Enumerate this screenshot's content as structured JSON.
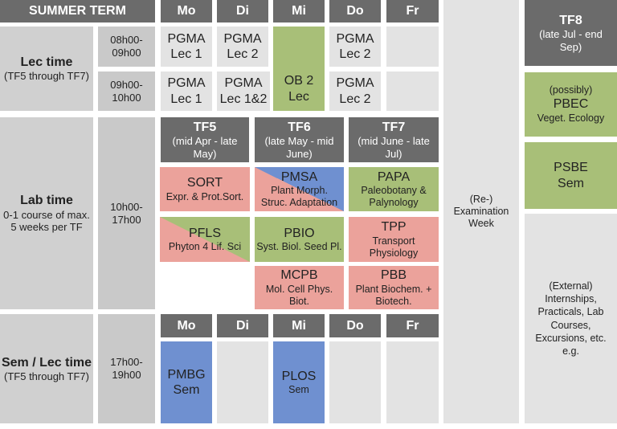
{
  "header": {
    "title": "SUMMER TERM",
    "days": [
      "Mo",
      "Di",
      "Mi",
      "Do",
      "Fr"
    ]
  },
  "lec": {
    "label": "Lec time",
    "sub": "(TF5 through TF7)",
    "times": [
      "08h00-\n09h00",
      "09h00-\n10h00"
    ],
    "row1": [
      {
        "c": "PGMA",
        "d": "Lec 1"
      },
      {
        "c": "PGMA",
        "d": "Lec 2"
      },
      {
        "c": "PGMA",
        "d": "Lec 2"
      }
    ],
    "row2": [
      {
        "c": "PGMA",
        "d": "Lec 1"
      },
      {
        "c": "PGMA",
        "d": "Lec 1&2"
      },
      {
        "c": "PGMA",
        "d": "Lec 2"
      }
    ],
    "ob2": {
      "c": "OB 2",
      "d": "Lec"
    }
  },
  "lab": {
    "label": "Lab time",
    "sub": "0-1 course of max. 5 weeks per TF",
    "time": "10h00-\n17h00",
    "tf": [
      {
        "t": "TF5",
        "s": "(mid Apr - late May)"
      },
      {
        "t": "TF6",
        "s": "(late May - mid June)"
      },
      {
        "t": "TF7",
        "s": "(mid June - late Jul)"
      }
    ],
    "courses": [
      {
        "c": "SORT",
        "d": "Expr. & Prot.Sort."
      },
      {
        "c": "PMSA",
        "d": "Plant Morph. Struc. Adaptation"
      },
      {
        "c": "PAPA",
        "d": "Paleobotany & Palynology"
      },
      {
        "c": "PFLS",
        "d": "Phyton 4 Lif. Sci"
      },
      {
        "c": "PBIO",
        "d": "Syst. Biol. Seed Pl."
      },
      {
        "c": "TPP",
        "d": "Transport Physiology"
      },
      {
        "c": "MCPB",
        "d": "Mol. Cell Phys. Biot."
      },
      {
        "c": "PBB",
        "d": "Plant Biochem. + Biotech."
      }
    ]
  },
  "sem": {
    "label": "Sem / Lec time",
    "sub": "(TF5 through TF7)",
    "time": "17h00-\n19h00",
    "pmbg": {
      "c": "PMBG",
      "d": "Sem"
    },
    "plos": {
      "c": "PLOS",
      "d": "Sem"
    }
  },
  "exam": "(Re-) Examination Week",
  "tf8": {
    "t": "TF8",
    "s": "(late Jul - end Sep)"
  },
  "pbec": {
    "pre": "(possibly)",
    "c": "PBEC",
    "d": "Veget. Ecology"
  },
  "psbe": {
    "c": "PSBE",
    "d": "Sem"
  },
  "external": "(External) Internships, Practicals, Lab Courses, Excursions, etc. e.g.",
  "colors": {
    "green": "#a8bf78",
    "pink": "#eba29b",
    "blue": "#6f90d0",
    "dark": "#6b6b6b"
  }
}
